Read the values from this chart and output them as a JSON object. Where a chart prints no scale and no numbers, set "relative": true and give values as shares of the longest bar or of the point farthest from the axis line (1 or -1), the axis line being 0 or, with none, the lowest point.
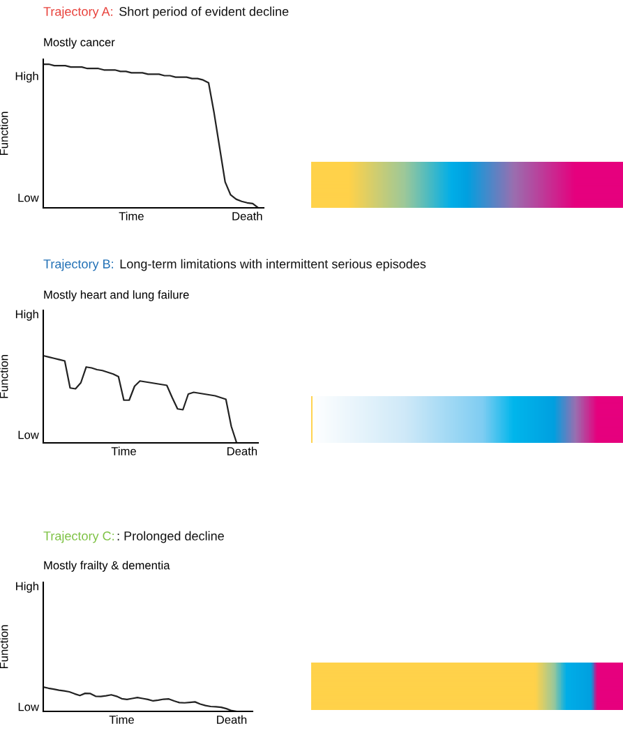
{
  "chart_data": [
    {
      "type": "line",
      "relative": true,
      "title": "Trajectory A: Short period of evident decline",
      "subtitle": "Mostly cancer",
      "ylabel": "Function",
      "annotations": [
        "High",
        "Low"
      ],
      "categories": [
        null,
        null,
        null,
        null,
        null,
        null,
        null,
        null,
        null,
        null,
        null,
        null,
        null,
        null,
        null,
        null,
        "Time",
        null,
        null,
        null,
        null,
        null,
        null,
        null,
        null,
        null,
        null,
        null,
        null,
        null,
        null,
        null,
        null,
        null,
        null,
        null,
        null,
        "Death",
        null,
        null,
        null
      ],
      "series": [
        {
          "color": "#222222",
          "values": [
            1.0,
            1.0,
            0.99,
            0.99,
            0.99,
            0.98,
            0.98,
            0.98,
            0.97,
            0.97,
            0.97,
            0.96,
            0.96,
            0.96,
            0.95,
            0.95,
            0.94,
            0.94,
            0.94,
            0.93,
            0.93,
            0.93,
            0.92,
            0.92,
            0.91,
            0.91,
            0.91,
            0.9,
            0.9,
            0.89,
            0.87,
            0.66,
            0.42,
            0.18,
            0.09,
            0.06,
            0.045,
            0.035,
            0.03,
            0,
            null
          ]
        }
      ]
    },
    {
      "type": "line",
      "relative": true,
      "title": "Trajectory B: Long-term limitations with intermittent serious episodes",
      "subtitle": "Mostly heart and lung failure",
      "ylabel": "Function",
      "annotations": [
        "High",
        "Low"
      ],
      "categories": [
        null,
        null,
        null,
        null,
        null,
        null,
        null,
        null,
        null,
        null,
        null,
        null,
        null,
        null,
        null,
        "Time",
        null,
        null,
        null,
        null,
        null,
        null,
        null,
        null,
        null,
        null,
        null,
        null,
        null,
        null,
        null,
        null,
        null,
        null,
        null,
        null,
        null,
        "Death",
        null,
        null,
        null
      ],
      "series": [
        {
          "color": "#222222",
          "values": [
            1.0,
            0.985,
            0.97,
            0.955,
            0.94,
            0.63,
            0.62,
            0.69,
            0.87,
            0.86,
            0.84,
            0.83,
            0.81,
            0.79,
            0.76,
            0.49,
            0.49,
            0.65,
            0.71,
            0.7,
            0.69,
            0.68,
            0.67,
            0.66,
            0.52,
            0.39,
            0.38,
            0.56,
            0.58,
            0.57,
            0.56,
            0.55,
            0.54,
            0.52,
            0.5,
            0.19,
            0,
            null,
            null,
            null,
            null
          ]
        }
      ]
    },
    {
      "type": "line",
      "relative": true,
      "title": "Trajectory C:: Prolonged decline",
      "subtitle": "Mostly frailty & dementia",
      "ylabel": "Function",
      "annotations": [
        "High",
        "Low"
      ],
      "categories": [
        null,
        null,
        null,
        null,
        null,
        null,
        null,
        null,
        null,
        null,
        null,
        null,
        null,
        null,
        null,
        "Time",
        null,
        null,
        null,
        null,
        null,
        null,
        null,
        null,
        null,
        null,
        null,
        null,
        null,
        null,
        null,
        null,
        null,
        null,
        null,
        null,
        "Death",
        null,
        null,
        null,
        null
      ],
      "series": [
        {
          "color": "#222222",
          "values": [
            1.0,
            0.95,
            0.91,
            0.87,
            0.84,
            0.8,
            0.72,
            0.65,
            0.74,
            0.73,
            0.62,
            0.61,
            0.64,
            0.68,
            0.62,
            0.52,
            0.49,
            0.53,
            0.57,
            0.53,
            0.49,
            0.43,
            0.46,
            0.5,
            0.51,
            0.43,
            0.36,
            0.35,
            0.37,
            0.39,
            0.3,
            0.24,
            0.2,
            0.19,
            0.17,
            0.11,
            0.03,
            0,
            0,
            0,
            0
          ]
        }
      ]
    }
  ]
}
